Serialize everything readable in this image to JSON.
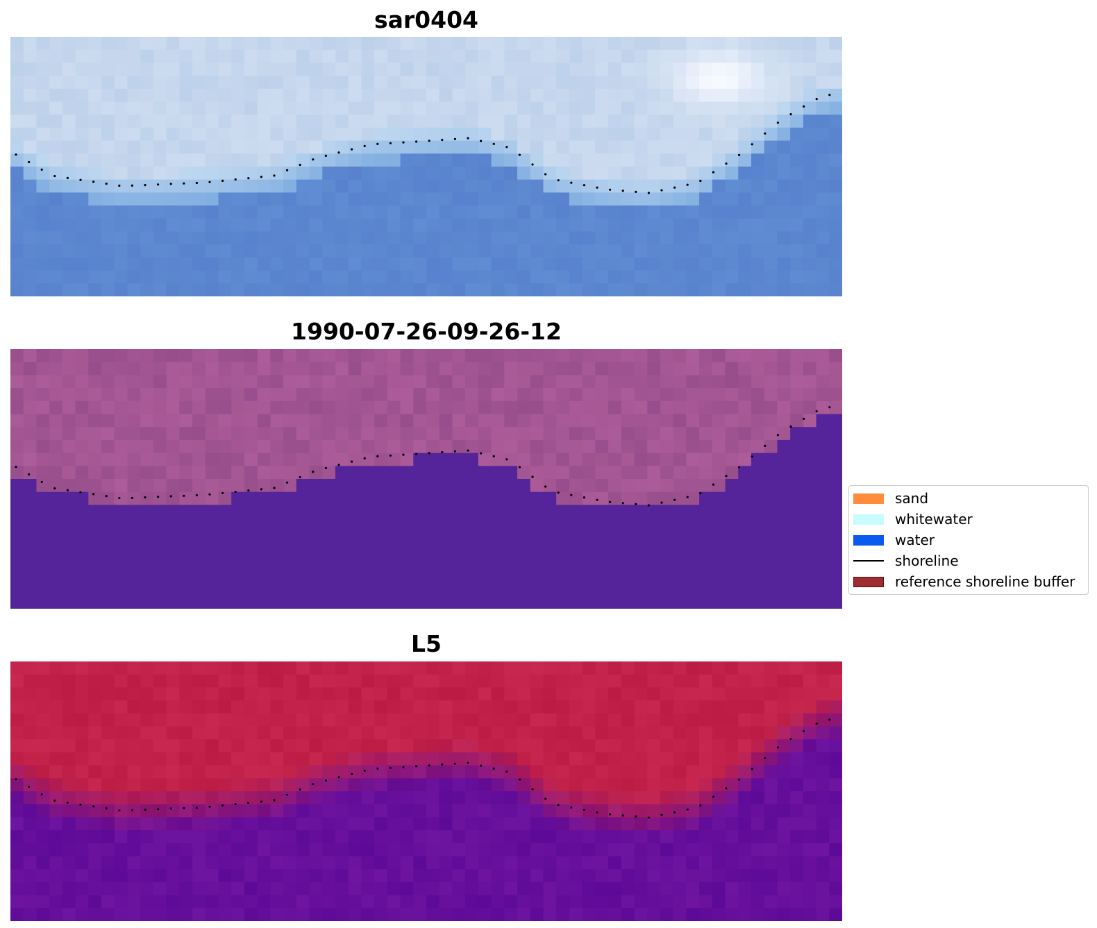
{
  "panels": [
    {
      "title": "sar0404",
      "kind": "rgb"
    },
    {
      "title": "1990-07-26-09-26-12",
      "kind": "classified"
    },
    {
      "title": "L5",
      "kind": "index"
    }
  ],
  "legend": {
    "items": [
      {
        "label": "sand",
        "type": "patch",
        "color": "#ff8c3c"
      },
      {
        "label": "whitewater",
        "type": "patch",
        "color": "#c8fcff"
      },
      {
        "label": "water",
        "type": "patch",
        "color": "#0b5af0"
      },
      {
        "label": "shoreline",
        "type": "line",
        "color": "#000000"
      },
      {
        "label": "reference shoreline buffer",
        "type": "patch",
        "color": "#9e2d32",
        "edge": "#5a0f14"
      }
    ]
  },
  "colors": {
    "classified_land": "#a0548e",
    "classified_water": "#55249a",
    "index_land": "#bc1f47",
    "index_water": "#5e0d9a",
    "shoreline_dots": "#000000"
  }
}
